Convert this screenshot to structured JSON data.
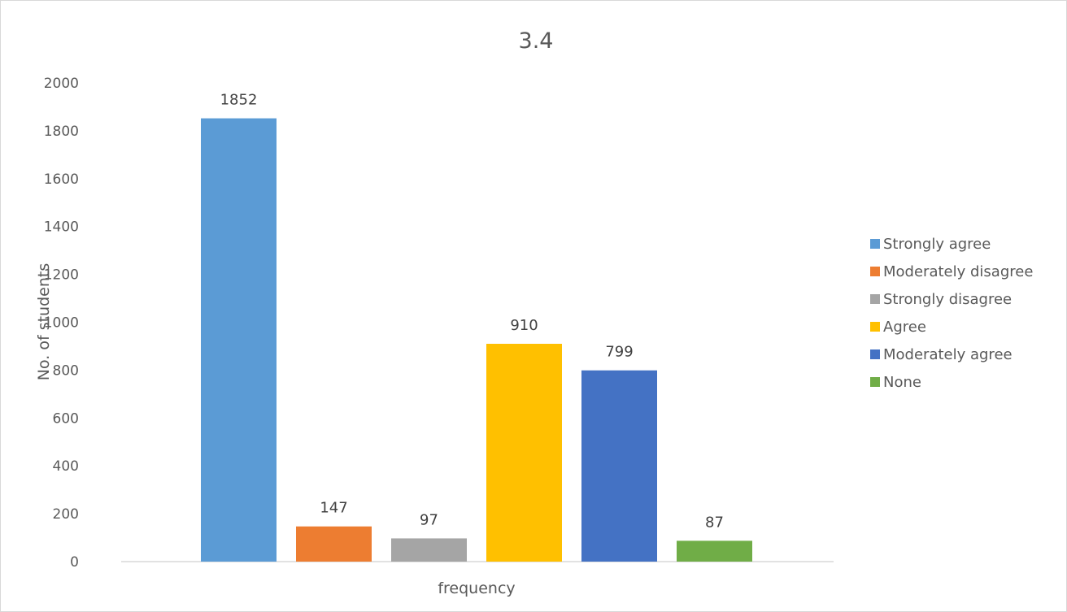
{
  "chart_data": {
    "type": "bar",
    "title": "3.4",
    "xlabel": "frequency",
    "ylabel": "No. of students",
    "categories": [
      "frequency"
    ],
    "ylim": [
      0,
      2000
    ],
    "yticks": [
      0,
      200,
      400,
      600,
      800,
      1000,
      1200,
      1400,
      1600,
      1800,
      2000
    ],
    "grid": false,
    "legend_position": "right",
    "data_labels": true,
    "series": [
      {
        "name": "Strongly agree",
        "values": [
          1852
        ],
        "color": "#5b9bd5"
      },
      {
        "name": "Moderately disagree",
        "values": [
          147
        ],
        "color": "#ed7d31"
      },
      {
        "name": "Strongly disagree",
        "values": [
          97
        ],
        "color": "#a5a5a5"
      },
      {
        "name": "Agree",
        "values": [
          910
        ],
        "color": "#ffc000"
      },
      {
        "name": "Moderately agree",
        "values": [
          799
        ],
        "color": "#4472c4"
      },
      {
        "name": "None",
        "values": [
          87
        ],
        "color": "#70ad47"
      }
    ]
  }
}
